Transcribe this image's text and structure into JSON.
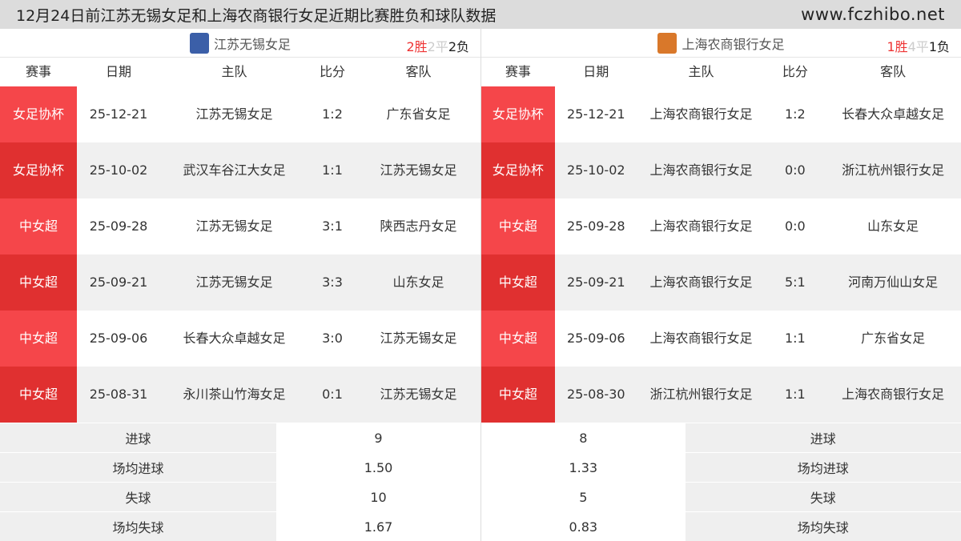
{
  "title": "12月24日前江苏无锡女足和上海农商银行女足近期比赛胜负和球队数据",
  "site": "www.fczhibo.net",
  "headers": [
    "赛事",
    "日期",
    "主队",
    "比分",
    "客队"
  ],
  "teams": [
    {
      "name": "江苏无锡女足",
      "logo_color": "#3b5fa8",
      "record": {
        "w": "2胜",
        "d": "2平",
        "l": "2负"
      },
      "matches": [
        {
          "league": "女足协杯",
          "date": "25-12-21",
          "home": "江苏无锡女足",
          "score": "1:2",
          "away": "广东省女足"
        },
        {
          "league": "女足协杯",
          "date": "25-10-02",
          "home": "武汉车谷江大女足",
          "score": "1:1",
          "away": "江苏无锡女足"
        },
        {
          "league": "中女超",
          "date": "25-09-28",
          "home": "江苏无锡女足",
          "score": "3:1",
          "away": "陕西志丹女足"
        },
        {
          "league": "中女超",
          "date": "25-09-21",
          "home": "江苏无锡女足",
          "score": "3:3",
          "away": "山东女足"
        },
        {
          "league": "中女超",
          "date": "25-09-06",
          "home": "长春大众卓越女足",
          "score": "3:0",
          "away": "江苏无锡女足"
        },
        {
          "league": "中女超",
          "date": "25-08-31",
          "home": "永川茶山竹海女足",
          "score": "0:1",
          "away": "江苏无锡女足"
        }
      ],
      "stats": [
        {
          "label": "进球",
          "value": "9"
        },
        {
          "label": "场均进球",
          "value": "1.50"
        },
        {
          "label": "失球",
          "value": "10"
        },
        {
          "label": "场均失球",
          "value": "1.67"
        }
      ]
    },
    {
      "name": "上海农商银行女足",
      "logo_color": "#d9782a",
      "record": {
        "w": "1胜",
        "d": "4平",
        "l": "1负"
      },
      "matches": [
        {
          "league": "女足协杯",
          "date": "25-12-21",
          "home": "上海农商银行女足",
          "score": "1:2",
          "away": "长春大众卓越女足"
        },
        {
          "league": "女足协杯",
          "date": "25-10-02",
          "home": "上海农商银行女足",
          "score": "0:0",
          "away": "浙江杭州银行女足"
        },
        {
          "league": "中女超",
          "date": "25-09-28",
          "home": "上海农商银行女足",
          "score": "0:0",
          "away": "山东女足"
        },
        {
          "league": "中女超",
          "date": "25-09-21",
          "home": "上海农商银行女足",
          "score": "5:1",
          "away": "河南万仙山女足"
        },
        {
          "league": "中女超",
          "date": "25-09-06",
          "home": "上海农商银行女足",
          "score": "1:1",
          "away": "广东省女足"
        },
        {
          "league": "中女超",
          "date": "25-08-30",
          "home": "浙江杭州银行女足",
          "score": "1:1",
          "away": "上海农商银行女足"
        }
      ],
      "stats": [
        {
          "label": "进球",
          "value": "8"
        },
        {
          "label": "场均进球",
          "value": "1.33"
        },
        {
          "label": "失球",
          "value": "5"
        },
        {
          "label": "场均失球",
          "value": "0.83"
        }
      ]
    }
  ]
}
